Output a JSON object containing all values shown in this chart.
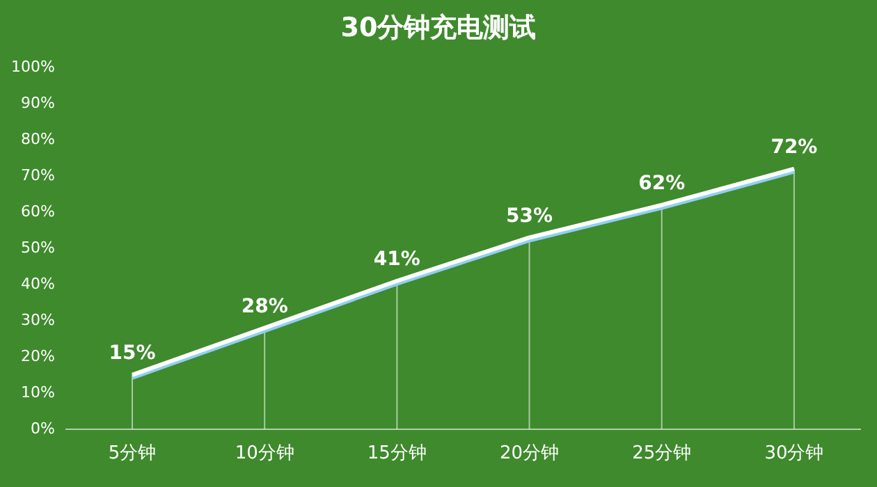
{
  "chart_data": {
    "type": "line",
    "title": "30分钟充电测试",
    "categories": [
      "5分钟",
      "10分钟",
      "15分钟",
      "20分钟",
      "25分钟",
      "30分钟"
    ],
    "series": [
      {
        "color": "#ffffff",
        "values": [
          15,
          28,
          41,
          53,
          62,
          72
        ],
        "value_labels": [
          "15%",
          "28%",
          "41%",
          "53%",
          "62%",
          "72%"
        ]
      }
    ],
    "ylim": [
      0,
      100
    ],
    "yticks": [
      {
        "value": 0,
        "label": "0%"
      },
      {
        "value": 10,
        "label": "10%"
      },
      {
        "value": 20,
        "label": "20%"
      },
      {
        "value": 30,
        "label": "30%"
      },
      {
        "value": 40,
        "label": "40%"
      },
      {
        "value": 50,
        "label": "50%"
      },
      {
        "value": 60,
        "label": "60%"
      },
      {
        "value": 70,
        "label": "70%"
      },
      {
        "value": 80,
        "label": "80%"
      },
      {
        "value": 90,
        "label": "90%"
      },
      {
        "value": 100,
        "label": "100%"
      }
    ],
    "grid": "x",
    "legend": false,
    "marker": "none",
    "line_style": "solid"
  }
}
